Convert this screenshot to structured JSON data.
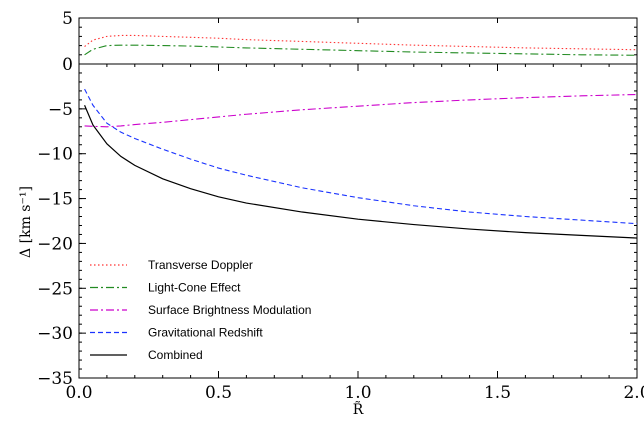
{
  "chart_data": {
    "type": "line",
    "xlabel": "R̃",
    "xlim": [
      0.0,
      2.0
    ],
    "x_ticks": [
      "0.0",
      "0.5",
      "1.0",
      "1.5",
      "2.0"
    ],
    "panels": [
      {
        "id": "top",
        "ylabel": "",
        "ylim": [
          0,
          5
        ],
        "y_ticks": [
          "0",
          "5"
        ],
        "series": [
          {
            "name": "Transverse Doppler",
            "color": "#ff3333",
            "dash": "dotted",
            "x": [
              0.02,
              0.05,
              0.1,
              0.15,
              0.2,
              0.3,
              0.4,
              0.5,
              0.6,
              0.8,
              1.0,
              1.2,
              1.4,
              1.6,
              1.8,
              2.0
            ],
            "y": [
              1.9,
              2.6,
              3.0,
              3.1,
              3.1,
              3.0,
              2.9,
              2.8,
              2.65,
              2.45,
              2.25,
              2.05,
              1.9,
              1.75,
              1.65,
              1.55
            ]
          },
          {
            "name": "Light-Cone Effect",
            "color": "#228b22",
            "dash": "dashdot",
            "x": [
              0.02,
              0.05,
              0.1,
              0.15,
              0.2,
              0.3,
              0.4,
              0.5,
              0.6,
              0.8,
              1.0,
              1.2,
              1.4,
              1.6,
              1.8,
              2.0
            ],
            "y": [
              1.0,
              1.6,
              2.0,
              2.05,
              2.05,
              2.0,
              1.95,
              1.85,
              1.75,
              1.6,
              1.45,
              1.3,
              1.2,
              1.1,
              1.0,
              0.95
            ]
          }
        ]
      },
      {
        "id": "bottom",
        "ylabel": "Δ [km s⁻¹]",
        "ylim": [
          -35,
          0
        ],
        "y_ticks": [
          "−5",
          "−10",
          "−15",
          "−20",
          "−25",
          "−30",
          "−35"
        ],
        "series": [
          {
            "name": "Surface Brightness Modulation",
            "color": "#cc00cc",
            "dash": "dashdot",
            "x": [
              0.02,
              0.05,
              0.1,
              0.15,
              0.2,
              0.3,
              0.4,
              0.5,
              0.6,
              0.8,
              1.0,
              1.2,
              1.4,
              1.6,
              1.8,
              2.0
            ],
            "y": [
              -6.9,
              -6.95,
              -7.0,
              -6.9,
              -6.75,
              -6.5,
              -6.2,
              -5.9,
              -5.6,
              -5.1,
              -4.7,
              -4.3,
              -4.0,
              -3.75,
              -3.55,
              -3.4
            ]
          },
          {
            "name": "Gravitational Redshift",
            "color": "#1a33ff",
            "dash": "dashed",
            "x": [
              0.02,
              0.05,
              0.1,
              0.15,
              0.2,
              0.3,
              0.4,
              0.5,
              0.6,
              0.8,
              1.0,
              1.2,
              1.4,
              1.6,
              1.8,
              2.0
            ],
            "y": [
              -2.8,
              -4.6,
              -6.6,
              -7.6,
              -8.3,
              -9.5,
              -10.6,
              -11.6,
              -12.4,
              -13.8,
              -14.9,
              -15.8,
              -16.5,
              -17.0,
              -17.4,
              -17.8
            ]
          },
          {
            "name": "Combined",
            "color": "#000000",
            "dash": "solid",
            "x": [
              0.02,
              0.05,
              0.1,
              0.15,
              0.2,
              0.3,
              0.4,
              0.5,
              0.6,
              0.8,
              1.0,
              1.2,
              1.4,
              1.6,
              1.8,
              2.0
            ],
            "y": [
              -4.6,
              -6.8,
              -8.9,
              -10.3,
              -11.3,
              -12.8,
              -13.9,
              -14.8,
              -15.5,
              -16.5,
              -17.3,
              -17.9,
              -18.4,
              -18.8,
              -19.1,
              -19.4
            ]
          }
        ]
      }
    ],
    "legend": {
      "placement": "lower-left",
      "entries": [
        "Transverse Doppler",
        "Light-Cone Effect",
        "Surface Brightness Modulation",
        "Gravitational Redshift",
        "Combined"
      ]
    }
  }
}
